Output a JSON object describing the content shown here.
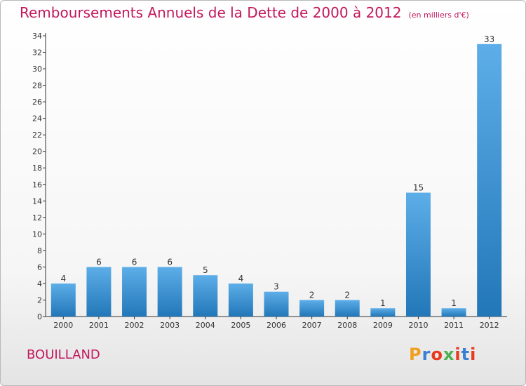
{
  "header": {
    "title": "Remboursements Annuels de la Dette de 2000 à 2012",
    "unit": "(en milliers d'€)"
  },
  "commune": "BOUILLAND",
  "logo": {
    "text": "Proxiti",
    "colors": [
      "#f0a020",
      "#3a7fd5",
      "#e83a1c",
      "#4caf50",
      "#e83a1c",
      "#3a7fd5",
      "#e83a1c"
    ]
  },
  "colors": {
    "accent": "#c2185b",
    "bar_top": "#5daee8",
    "bar_bottom": "#2277b8",
    "axis": "#333333"
  },
  "chart_data": {
    "type": "bar",
    "categories": [
      "2000",
      "2001",
      "2002",
      "2003",
      "2004",
      "2005",
      "2006",
      "2007",
      "2008",
      "2009",
      "2010",
      "2011",
      "2012"
    ],
    "values": [
      4,
      6,
      6,
      6,
      5,
      4,
      3,
      2,
      2,
      1,
      15,
      1,
      33
    ],
    "title": "Remboursements Annuels de la Dette de 2000 à 2012",
    "subtitle": "(en milliers d'€)",
    "xlabel": "",
    "ylabel": "",
    "ylim": [
      0,
      34
    ],
    "yticks": [
      0,
      2,
      4,
      6,
      8,
      10,
      12,
      14,
      16,
      18,
      20,
      22,
      24,
      26,
      28,
      30,
      32,
      34
    ],
    "grid": false,
    "legend": "none"
  }
}
